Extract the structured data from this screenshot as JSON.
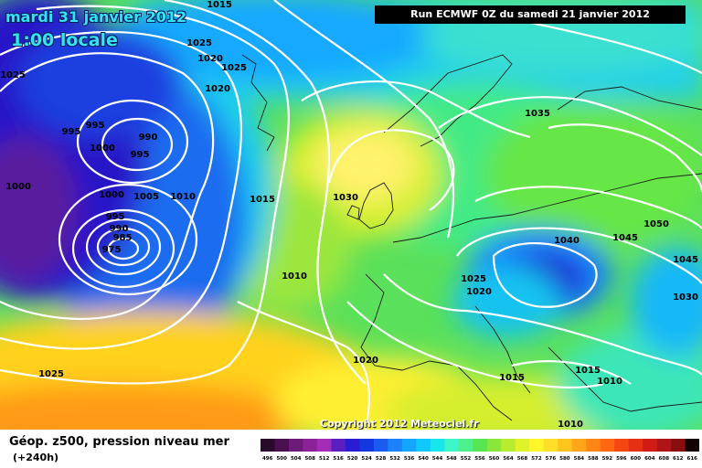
{
  "header": {
    "date": "mardi 31 janvier 2012",
    "time": "1:00 locale",
    "run": "Run ECMWF 0Z du samedi 21 janvier 2012"
  },
  "map": {
    "pressure_labels": [
      "1015",
      "1025",
      "1020",
      "1025",
      "1020",
      "1025",
      "995",
      "995",
      "990",
      "1000",
      "995",
      "1000",
      "1000",
      "1005",
      "1010",
      "1015",
      "1030",
      "995",
      "990",
      "985",
      "975",
      "1010",
      "1035",
      "1040",
      "1045",
      "1050",
      "1045",
      "1025",
      "1020",
      "1030",
      "1020",
      "1025",
      "1015",
      "1015",
      "1010",
      "1010"
    ],
    "copyright": "Copyright 2012 Meteociel.fr"
  },
  "legend": {
    "title": "Géop. z500, pression niveau mer",
    "subtitle": "(+240h)",
    "scale_values": [
      "496",
      "500",
      "504",
      "508",
      "512",
      "516",
      "520",
      "524",
      "528",
      "532",
      "536",
      "540",
      "544",
      "548",
      "552",
      "556",
      "560",
      "564",
      "568",
      "572",
      "576",
      "580",
      "584",
      "588",
      "592",
      "596",
      "600",
      "604",
      "608",
      "612",
      "616"
    ],
    "scale_colors": [
      "#2a0a2a",
      "#4a0f4f",
      "#6e1a78",
      "#8c2297",
      "#a52cb5",
      "#5a1fc2",
      "#2a1cd3",
      "#1438e0",
      "#1a5cf0",
      "#1b82fa",
      "#12a6ff",
      "#10c8fa",
      "#17e6ef",
      "#3cf5c8",
      "#4ef08e",
      "#57e651",
      "#8ae63a",
      "#b7ed2e",
      "#e0f22a",
      "#fff52a",
      "#ffe028",
      "#ffc41e",
      "#ffa51a",
      "#ff8615",
      "#ff6712",
      "#f54712",
      "#e53013",
      "#d11c15",
      "#b11416",
      "#8a0e10",
      "#120202"
    ]
  }
}
